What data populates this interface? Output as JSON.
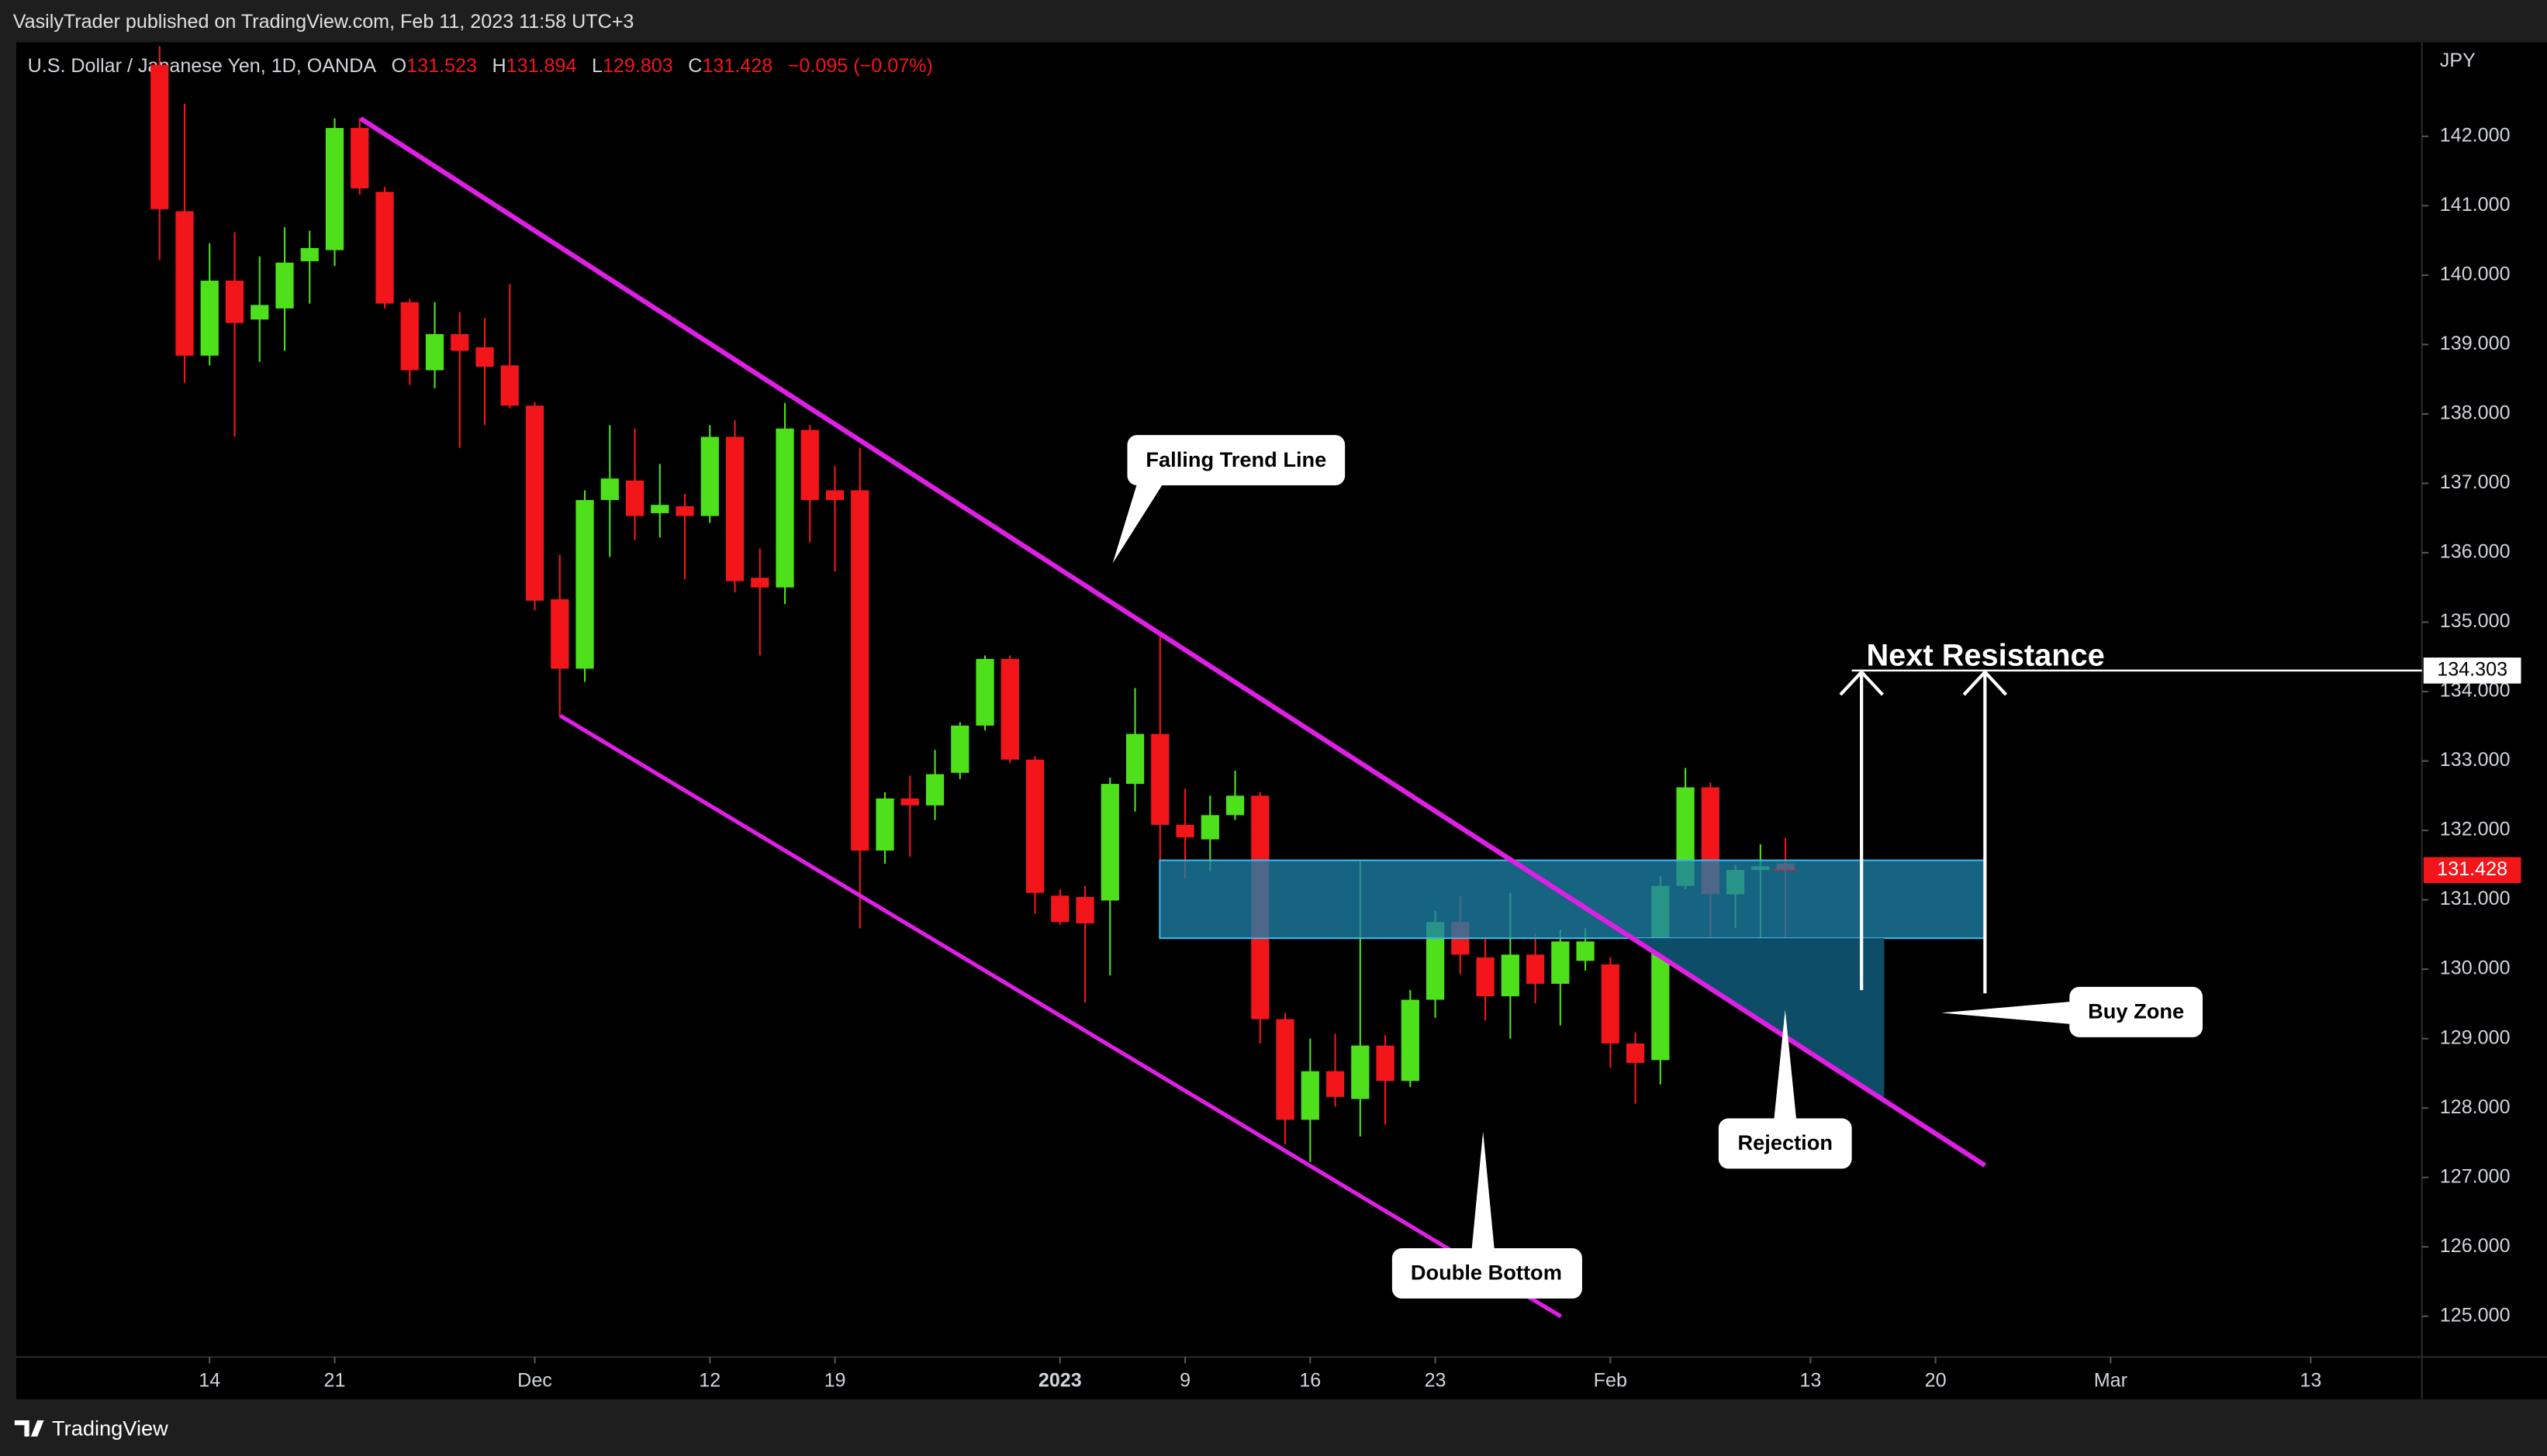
{
  "header": {
    "publisher": "VasilyTrader published on TradingView.com, Feb 11, 2023 11:58 UTC+3",
    "symbol": "U.S. Dollar / Japanese Yen, 1D, OANDA",
    "ohlc_labels": [
      "O",
      "H",
      "L",
      "C"
    ],
    "change": "−0.095 (−0.07%)",
    "footer": "TradingView"
  },
  "annotations": {
    "trend": "Falling Trend Line",
    "resistance": "Next Resistance",
    "buy_zone": "Buy Zone",
    "rejection": "Rejection",
    "double_bottom": "Double Bottom"
  },
  "chart_data": {
    "type": "candlestick",
    "y_unit": "JPY",
    "up_color": "#4fe01c",
    "down_color": "#f2161a",
    "grid": false,
    "open": [
      143.03,
      140.92,
      138.84,
      139.92,
      139.36,
      139.52,
      140.2,
      140.36,
      142.12,
      141.2,
      139.61,
      138.63,
      139.15,
      138.96,
      138.7,
      138.12,
      135.33,
      134.33,
      136.76,
      137.04,
      136.57,
      136.67,
      136.53,
      137.67,
      135.64,
      135.5,
      137.77,
      136.9,
      136.9,
      131.71,
      132.46,
      132.36,
      132.83,
      133.51,
      134.47,
      133.02,
      131.06,
      131.04,
      130.99,
      132.67,
      133.39,
      132.08,
      131.87,
      132.22,
      132.5,
      129.28,
      127.83,
      128.53,
      128.13,
      128.9,
      128.39,
      129.56,
      130.68,
      130.17,
      129.61,
      130.21,
      129.79,
      130.12,
      130.07,
      128.93,
      128.69,
      131.2,
      132.62,
      131.08,
      131.43,
      131.523
    ],
    "high": [
      143.3,
      142.47,
      140.46,
      140.62,
      140.27,
      140.69,
      140.64,
      142.26,
      142.26,
      141.27,
      139.66,
      139.61,
      139.47,
      139.38,
      139.87,
      138.17,
      135.97,
      136.9,
      137.84,
      137.79,
      137.28,
      136.85,
      137.84,
      137.91,
      136.06,
      138.16,
      137.84,
      137.25,
      137.51,
      132.55,
      132.79,
      133.16,
      133.56,
      134.52,
      134.52,
      133.07,
      131.15,
      131.2,
      132.76,
      134.05,
      134.8,
      132.6,
      132.5,
      132.86,
      132.55,
      129.37,
      129.0,
      129.07,
      131.57,
      129.05,
      129.7,
      130.84,
      131.06,
      130.47,
      131.1,
      130.52,
      130.57,
      130.59,
      130.17,
      129.09,
      131.34,
      132.9,
      132.69,
      131.5,
      131.8,
      131.894
    ],
    "low": [
      140.22,
      138.45,
      138.7,
      137.67,
      138.75,
      138.91,
      139.59,
      140.13,
      141.16,
      139.52,
      138.42,
      138.37,
      137.51,
      137.84,
      138.08,
      135.17,
      133.63,
      134.14,
      135.94,
      136.18,
      136.22,
      135.62,
      136.43,
      135.43,
      134.52,
      135.26,
      136.15,
      135.73,
      130.59,
      131.52,
      131.62,
      132.15,
      132.74,
      133.44,
      132.97,
      130.8,
      130.64,
      129.52,
      129.91,
      132.27,
      131.57,
      131.31,
      131.41,
      132.15,
      128.93,
      127.48,
      127.22,
      128.02,
      127.59,
      127.76,
      128.3,
      129.3,
      129.93,
      129.26,
      129.0,
      129.51,
      129.19,
      129.98,
      128.58,
      128.06,
      128.34,
      131.15,
      130.45,
      130.59,
      130.35,
      129.803
    ],
    "close": [
      140.95,
      138.84,
      139.92,
      139.31,
      139.57,
      140.18,
      140.39,
      142.12,
      141.25,
      139.59,
      138.63,
      139.15,
      138.91,
      138.68,
      138.12,
      135.31,
      134.33,
      136.76,
      137.07,
      136.53,
      136.69,
      136.53,
      137.67,
      135.59,
      135.5,
      137.79,
      136.76,
      136.76,
      131.71,
      132.46,
      132.36,
      132.81,
      133.51,
      134.47,
      133.02,
      131.1,
      130.68,
      130.66,
      132.67,
      133.39,
      132.08,
      131.9,
      132.22,
      132.5,
      129.28,
      127.83,
      128.53,
      128.16,
      128.9,
      128.39,
      129.56,
      130.68,
      130.21,
      129.61,
      130.21,
      129.79,
      130.4,
      130.4,
      128.93,
      128.65,
      131.2,
      132.62,
      131.08,
      131.43,
      131.48,
      131.428
    ],
    "resistance_level": 134.303,
    "xlim": [
      -5.73,
      90.38
    ],
    "ylim": [
      124.413,
      143.356
    ],
    "xticks": [
      {
        "value": 2,
        "label": "14"
      },
      {
        "value": 7,
        "label": "21"
      },
      {
        "value": 15,
        "label": "Dec"
      },
      {
        "value": 22,
        "label": "12"
      },
      {
        "value": 27,
        "label": "19"
      },
      {
        "value": 36,
        "label": "2023"
      },
      {
        "value": 41,
        "label": "9"
      },
      {
        "value": 46,
        "label": "16"
      },
      {
        "value": 51,
        "label": "23"
      },
      {
        "value": 58,
        "label": "Feb"
      },
      {
        "value": 66,
        "label": "13"
      },
      {
        "value": 71,
        "label": "20"
      },
      {
        "value": 78,
        "label": "Mar"
      },
      {
        "value": 86,
        "label": "13"
      }
    ],
    "yticks": [
      {
        "value": 125,
        "label": "125.000"
      },
      {
        "value": 126,
        "label": "126.000"
      },
      {
        "value": 127,
        "label": "127.000"
      },
      {
        "value": 128,
        "label": "128.000"
      },
      {
        "value": 129,
        "label": "129.000"
      },
      {
        "value": 130,
        "label": "130.000"
      },
      {
        "value": 131,
        "label": "131.000"
      },
      {
        "value": 132,
        "label": "132.000"
      },
      {
        "value": 133,
        "label": "133.000"
      },
      {
        "value": 134,
        "label": "134.000"
      },
      {
        "value": 135,
        "label": "135.000"
      },
      {
        "value": 136,
        "label": "136.000"
      },
      {
        "value": 137,
        "label": "137.000"
      },
      {
        "value": 138,
        "label": "138.000"
      },
      {
        "value": 139,
        "label": "139.000"
      },
      {
        "value": 140,
        "label": "140.000"
      },
      {
        "value": 141,
        "label": "141.000"
      },
      {
        "value": 142,
        "label": "142.000"
      }
    ]
  }
}
